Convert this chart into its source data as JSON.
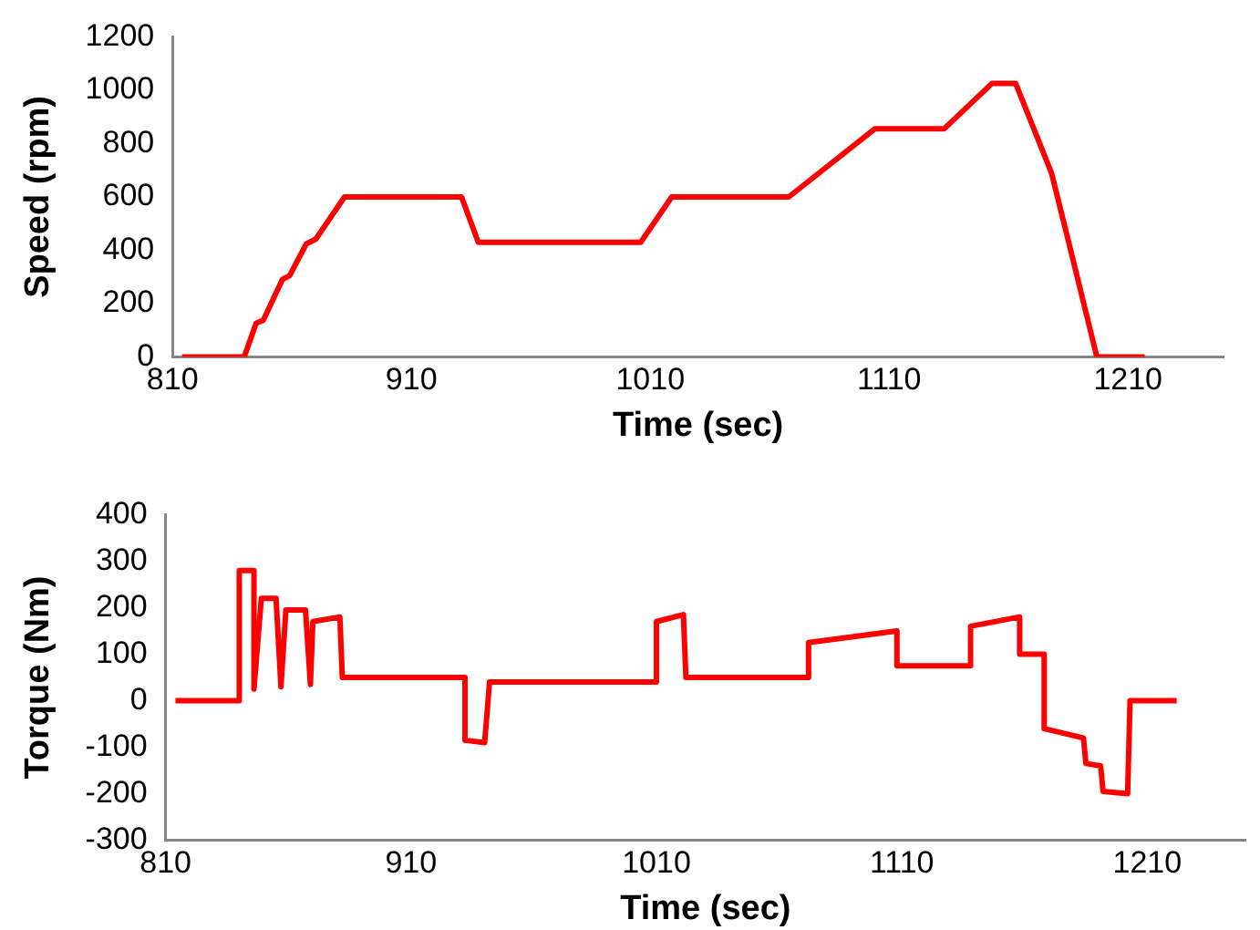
{
  "chart_data": [
    {
      "type": "line",
      "xlabel": "Time (sec)",
      "ylabel": "Speed (rpm)",
      "xlim": [
        810,
        1250
      ],
      "xticks": [
        810,
        910,
        1010,
        1110,
        1210
      ],
      "ylim": [
        0,
        1200
      ],
      "yticks": [
        0,
        200,
        400,
        600,
        800,
        1000,
        1200
      ],
      "grid": false,
      "legend": false,
      "marker": "none",
      "x": [
        814,
        840,
        845,
        848,
        856,
        859,
        866,
        870,
        882,
        931,
        938,
        1006,
        1019,
        1068,
        1104,
        1133,
        1153,
        1163,
        1178,
        1185,
        1197,
        1217
      ],
      "series": [
        {
          "color": "#ff0000",
          "values": [
            0,
            0,
            127,
            138,
            291,
            305,
            424,
            442,
            600,
            600,
            430,
            430,
            600,
            600,
            855,
            855,
            1025,
            1025,
            689,
            437,
            0,
            0
          ]
        }
      ]
    },
    {
      "type": "line",
      "xlabel": "Time (sec)",
      "ylabel": "Torque (Nm)",
      "xlim": [
        810,
        1250
      ],
      "xticks": [
        810,
        910,
        1010,
        1110,
        1210
      ],
      "ylim": [
        -300,
        400
      ],
      "yticks": [
        -300,
        -200,
        -100,
        0,
        100,
        200,
        300,
        400
      ],
      "grid": false,
      "legend": false,
      "marker": "none",
      "x": [
        814,
        840,
        840,
        846,
        846,
        849,
        855,
        857,
        859,
        867,
        869,
        870,
        881,
        882,
        932,
        932,
        940,
        942,
        1010,
        1010,
        1021,
        1022,
        1072,
        1072,
        1108,
        1108,
        1138,
        1138,
        1158,
        1158,
        1168,
        1168,
        1184,
        1185,
        1191,
        1192,
        1202,
        1203,
        1222
      ],
      "series": [
        {
          "color": "#ff0000",
          "values": [
            0,
            0,
            280,
            280,
            25,
            220,
            220,
            30,
            195,
            195,
            35,
            170,
            180,
            50,
            50,
            -85,
            -90,
            40,
            40,
            170,
            185,
            50,
            50,
            125,
            150,
            75,
            75,
            160,
            180,
            100,
            100,
            -60,
            -80,
            -135,
            -140,
            -195,
            -200,
            0,
            0
          ]
        }
      ]
    }
  ]
}
